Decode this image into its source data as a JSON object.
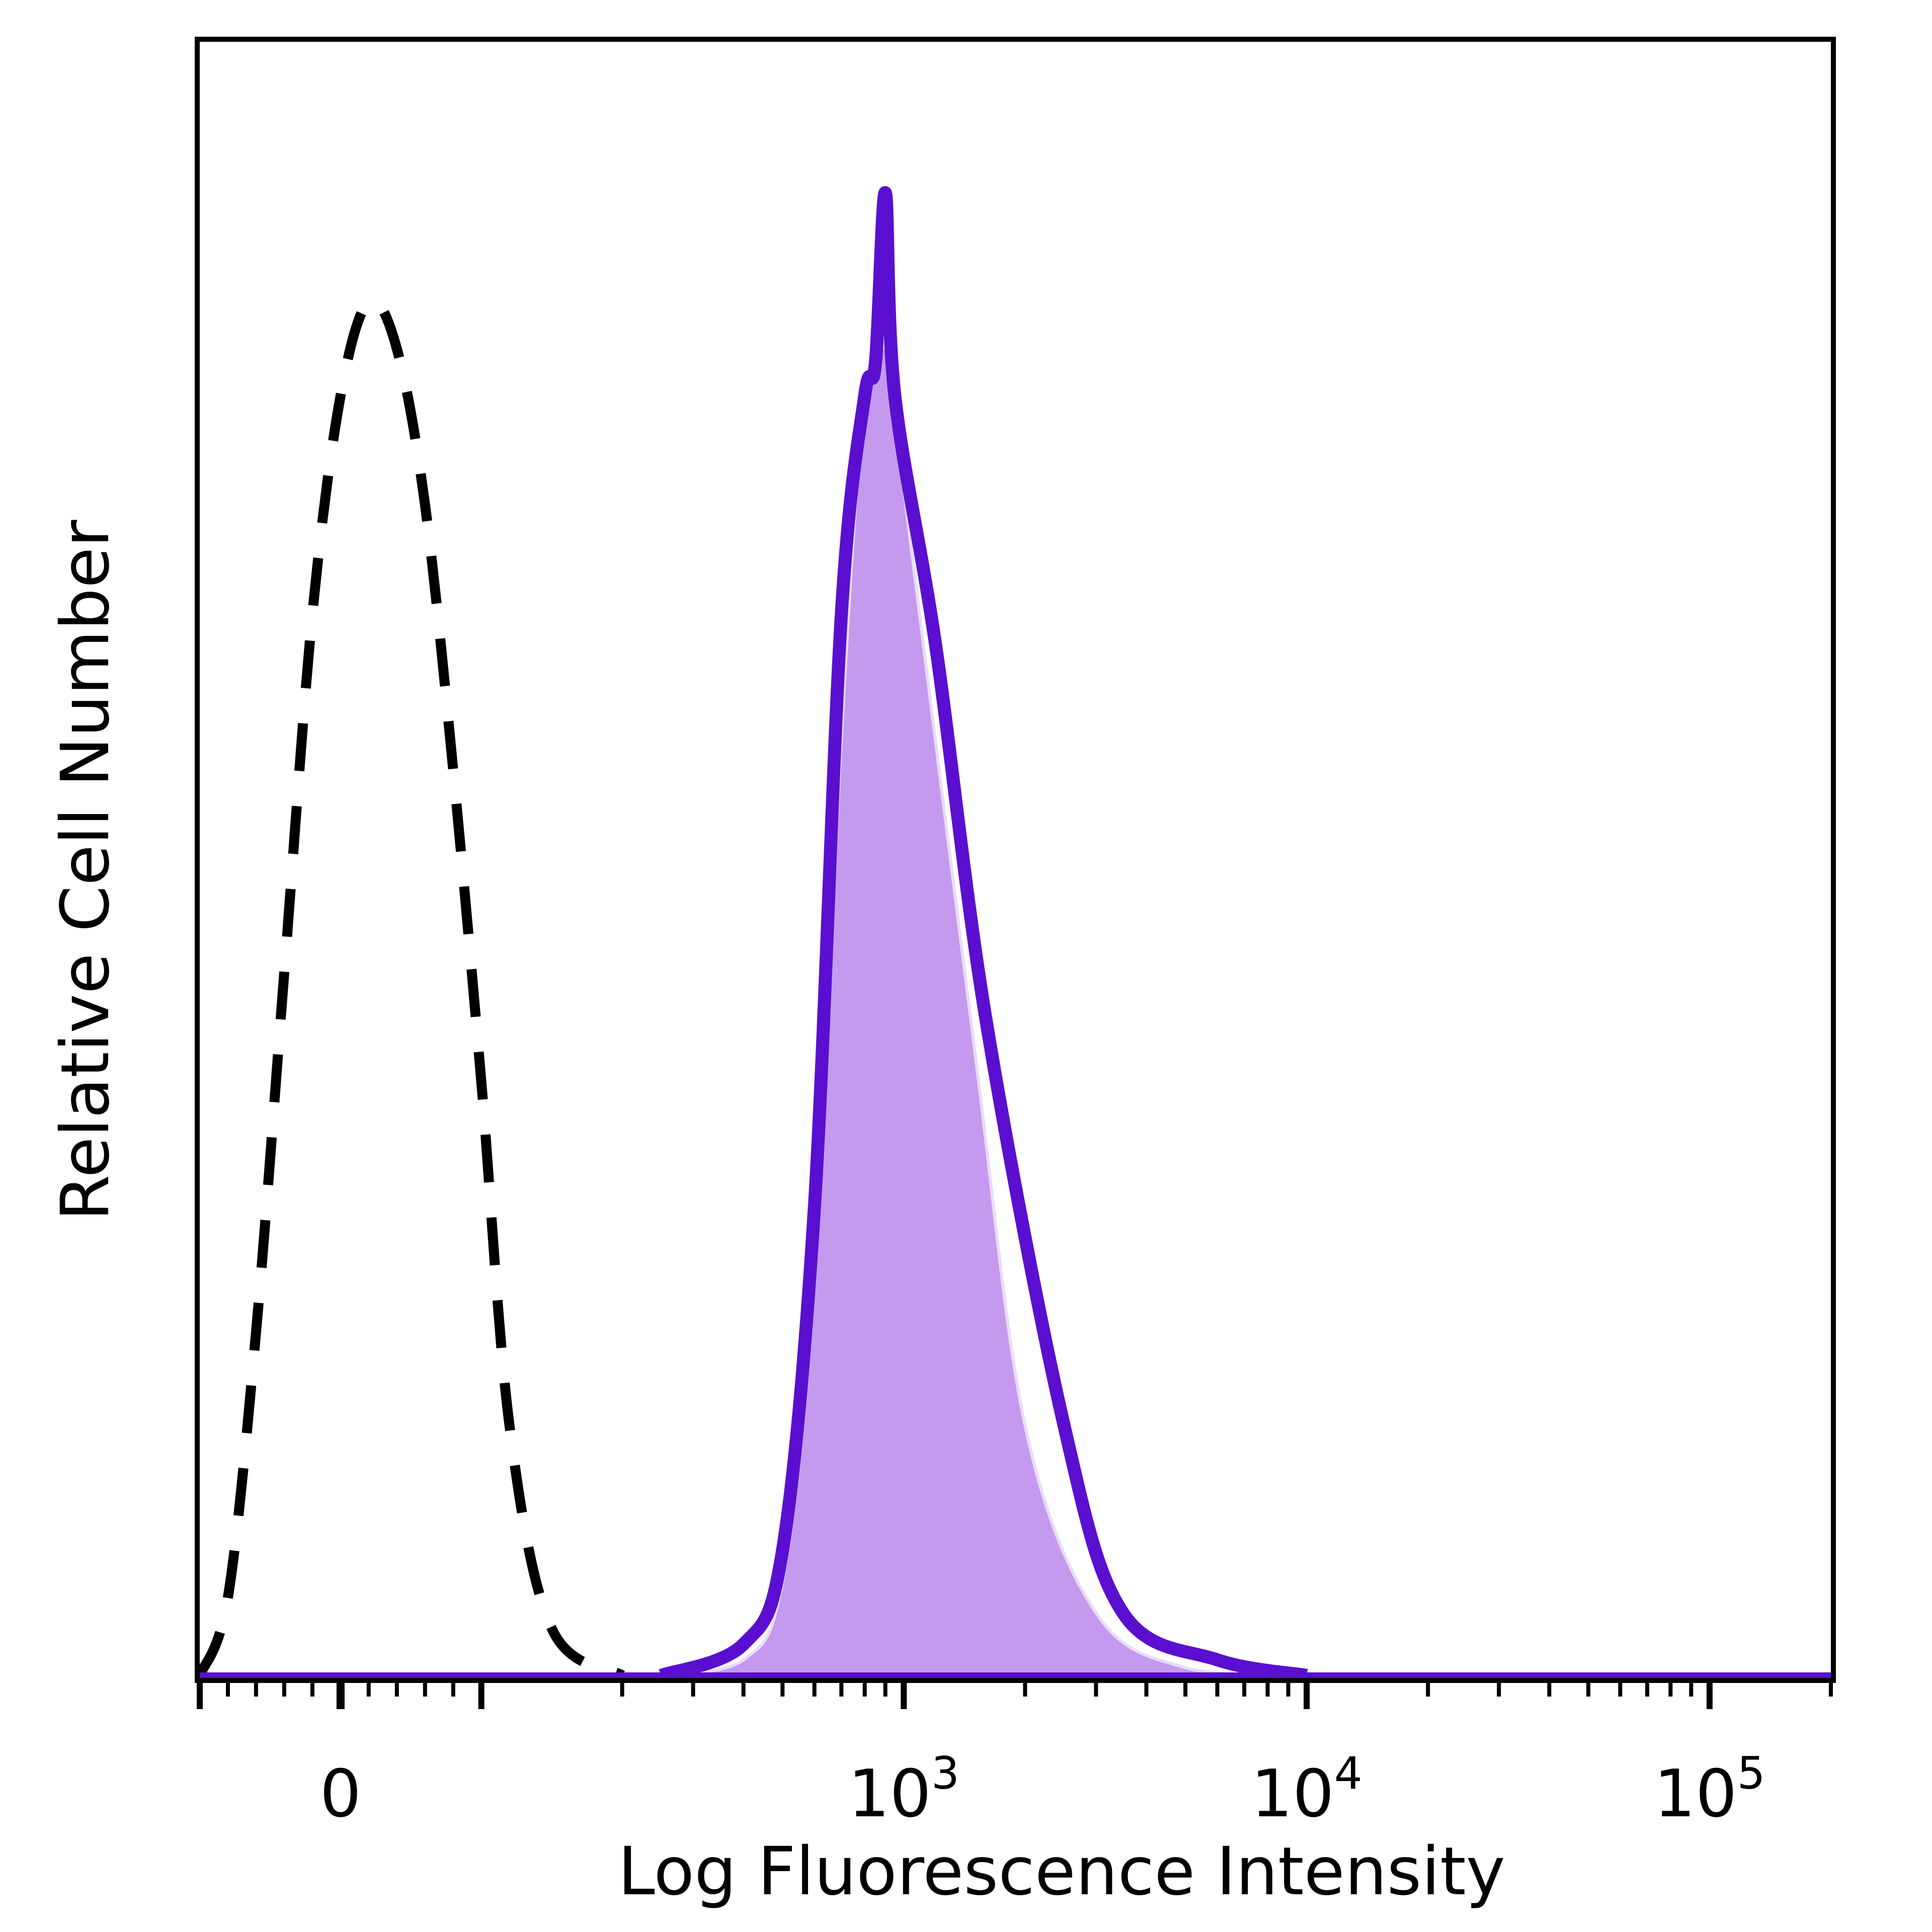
{
  "chart_data": {
    "type": "area",
    "xlabel": "Log Fluorescence Intensity",
    "ylabel": "Relative Cell Number",
    "x_scale": "biexponential",
    "xlim": [
      -100,
      200000
    ],
    "ylim": [
      0,
      1.0
    ],
    "grid": false,
    "legend": "none",
    "x_tick_labels": [
      {
        "value": 0,
        "label": "0"
      },
      {
        "value": 1000,
        "base": "10",
        "exp": "3"
      },
      {
        "value": 10000,
        "base": "10",
        "exp": "4"
      },
      {
        "value": 100000,
        "base": "10",
        "exp": "5"
      }
    ],
    "series": [
      {
        "style": "dashed",
        "color": "#000000",
        "points": [
          {
            "x": -100,
            "y": 0.0
          },
          {
            "x": -80,
            "y": 0.05
          },
          {
            "x": -60,
            "y": 0.22
          },
          {
            "x": -40,
            "y": 0.45
          },
          {
            "x": -20,
            "y": 0.68
          },
          {
            "x": 0,
            "y": 0.82
          },
          {
            "x": 20,
            "y": 0.88
          },
          {
            "x": 40,
            "y": 0.85
          },
          {
            "x": 60,
            "y": 0.75
          },
          {
            "x": 80,
            "y": 0.58
          },
          {
            "x": 100,
            "y": 0.38
          },
          {
            "x": 120,
            "y": 0.16
          },
          {
            "x": 150,
            "y": 0.03
          },
          {
            "x": 200,
            "y": 0.0
          }
        ]
      },
      {
        "style": "filled",
        "color": "#c49aee",
        "points": [
          {
            "x": 250,
            "y": 0.0
          },
          {
            "x": 400,
            "y": 0.01
          },
          {
            "x": 500,
            "y": 0.06
          },
          {
            "x": 600,
            "y": 0.25
          },
          {
            "x": 700,
            "y": 0.6
          },
          {
            "x": 800,
            "y": 0.82
          },
          {
            "x": 900,
            "y": 0.85
          },
          {
            "x": 1000,
            "y": 0.76
          },
          {
            "x": 1500,
            "y": 0.4
          },
          {
            "x": 2000,
            "y": 0.16
          },
          {
            "x": 3000,
            "y": 0.04
          },
          {
            "x": 5000,
            "y": 0.005
          },
          {
            "x": 10000,
            "y": 0.0
          }
        ]
      },
      {
        "style": "solid",
        "color": "#5a0fd0",
        "points": [
          {
            "x": 250,
            "y": 0.0
          },
          {
            "x": 400,
            "y": 0.02
          },
          {
            "x": 500,
            "y": 0.08
          },
          {
            "x": 600,
            "y": 0.3
          },
          {
            "x": 700,
            "y": 0.68
          },
          {
            "x": 800,
            "y": 0.82
          },
          {
            "x": 850,
            "y": 0.84
          },
          {
            "x": 900,
            "y": 0.95
          },
          {
            "x": 950,
            "y": 0.82
          },
          {
            "x": 1200,
            "y": 0.66
          },
          {
            "x": 1600,
            "y": 0.42
          },
          {
            "x": 2500,
            "y": 0.16
          },
          {
            "x": 3500,
            "y": 0.04
          },
          {
            "x": 6000,
            "y": 0.01
          },
          {
            "x": 10000,
            "y": 0.0
          }
        ]
      }
    ]
  }
}
